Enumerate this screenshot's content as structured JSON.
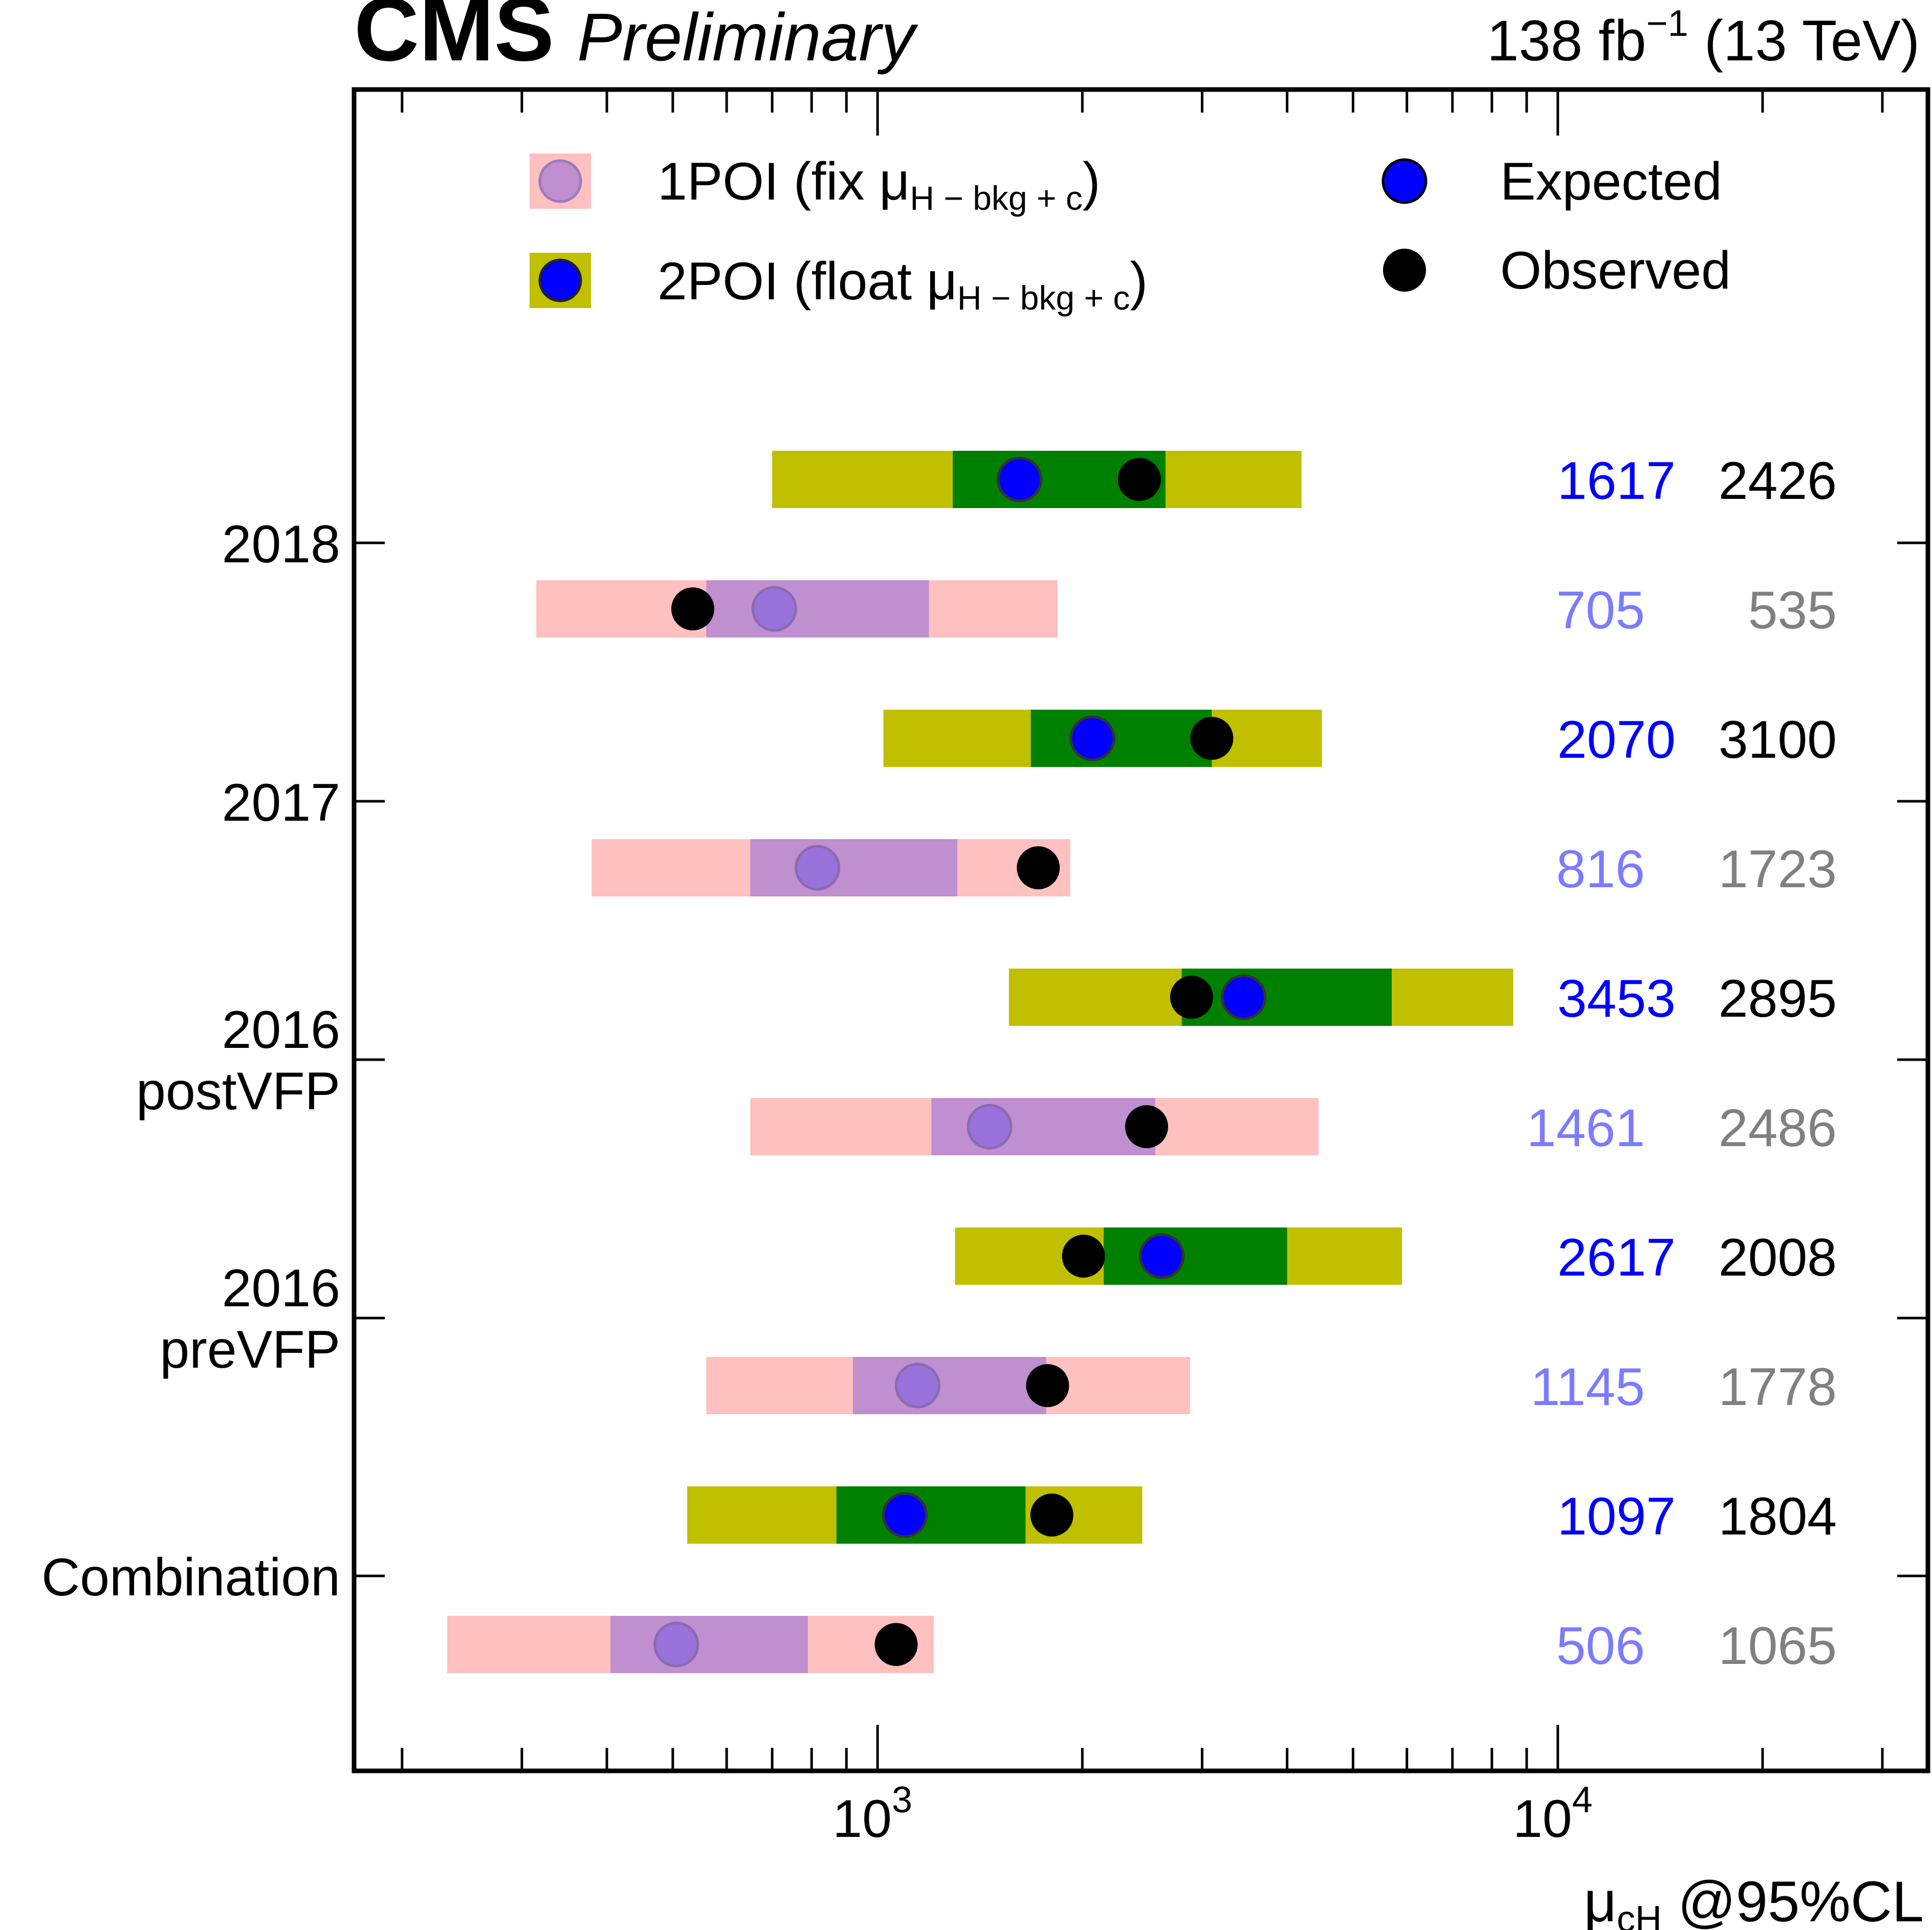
{
  "header": {
    "experiment": "CMS",
    "status": "Preliminary",
    "lumi_prefix": "138 fb",
    "lumi_exponent": "−1",
    "lumi_suffix": " (13 TeV)"
  },
  "legend": {
    "one_poi_prefix": "1POI (fix μ",
    "one_poi_sub": "H − bkg + c",
    "one_poi_suffix": ")",
    "two_poi_prefix": "2POI (float μ",
    "two_poi_sub": "H − bkg + c",
    "two_poi_suffix": ")",
    "expected": "Expected",
    "observed": "Observed"
  },
  "colors": {
    "one_poi_outer": "#ffc0c0",
    "one_poi_inner": "#bf8fcf",
    "one_poi_marker": "#9370db",
    "two_poi_outer": "#c0c000",
    "two_poi_inner": "#008000",
    "expected_marker": "#0000ff",
    "observed_marker": "#000000",
    "two_poi_exp_text": "#0000ff",
    "two_poi_obs_text": "#000000",
    "one_poi_exp_text": "#7b7bff",
    "one_poi_obs_text": "#808080"
  },
  "chart_data": {
    "type": "interval-limits",
    "title": "CMS Preliminary",
    "xlabel_prefix": "μ",
    "xlabel_sub": "cH",
    "xlabel_suffix": " @95%CL",
    "xscale": "log",
    "xlim": [
      170,
      35000
    ],
    "xticks": [
      {
        "base": "10",
        "exp": "3",
        "value": 1000
      },
      {
        "base": "10",
        "exp": "4",
        "value": 10000
      }
    ],
    "categories": [
      "2018",
      "2017",
      "2016 postVFP",
      "2016 preVFP",
      "Combination"
    ],
    "category_labels": [
      [
        "2018"
      ],
      [
        "2017"
      ],
      [
        "2016",
        "postVFP"
      ],
      [
        "2016",
        "preVFP"
      ],
      [
        "Combination"
      ]
    ],
    "series": [
      {
        "name": "2POI (float μH−bkg+c)",
        "expected": [
          1617,
          2070,
          3453,
          2617,
          1097
        ],
        "observed": [
          2426,
          3100,
          2895,
          2008,
          1804
        ],
        "band_1sigma": [
          [
            1290,
            2650
          ],
          [
            1680,
            3100
          ],
          [
            2800,
            5700
          ],
          [
            2150,
            4000
          ],
          [
            870,
            1650
          ]
        ],
        "band_2sigma": [
          [
            700,
            4200
          ],
          [
            1020,
            4500
          ],
          [
            1560,
            8600
          ],
          [
            1300,
            5900
          ],
          [
            525,
            2450
          ]
        ],
        "expected_labels": [
          "1617",
          "2070",
          "3453",
          "2617",
          "1097"
        ],
        "observed_labels": [
          "2426",
          "3100",
          "2895",
          "2008",
          "1804"
        ]
      },
      {
        "name": "1POI (fix μH−bkg+c)",
        "expected": [
          705,
          816,
          1461,
          1145,
          506
        ],
        "observed": [
          535,
          1723,
          2486,
          1778,
          1065
        ],
        "band_1sigma": [
          [
            560,
            1190
          ],
          [
            650,
            1310
          ],
          [
            1200,
            2560
          ],
          [
            920,
            1770
          ],
          [
            405,
            790
          ]
        ],
        "band_2sigma": [
          [
            315,
            1840
          ],
          [
            380,
            1920
          ],
          [
            650,
            4450
          ],
          [
            560,
            2880
          ],
          [
            233,
            1210
          ]
        ],
        "expected_labels": [
          "705",
          "816",
          "1461",
          "1145",
          "506"
        ],
        "observed_labels": [
          "535",
          "1723",
          "2486",
          "1778",
          "1065"
        ]
      }
    ]
  }
}
